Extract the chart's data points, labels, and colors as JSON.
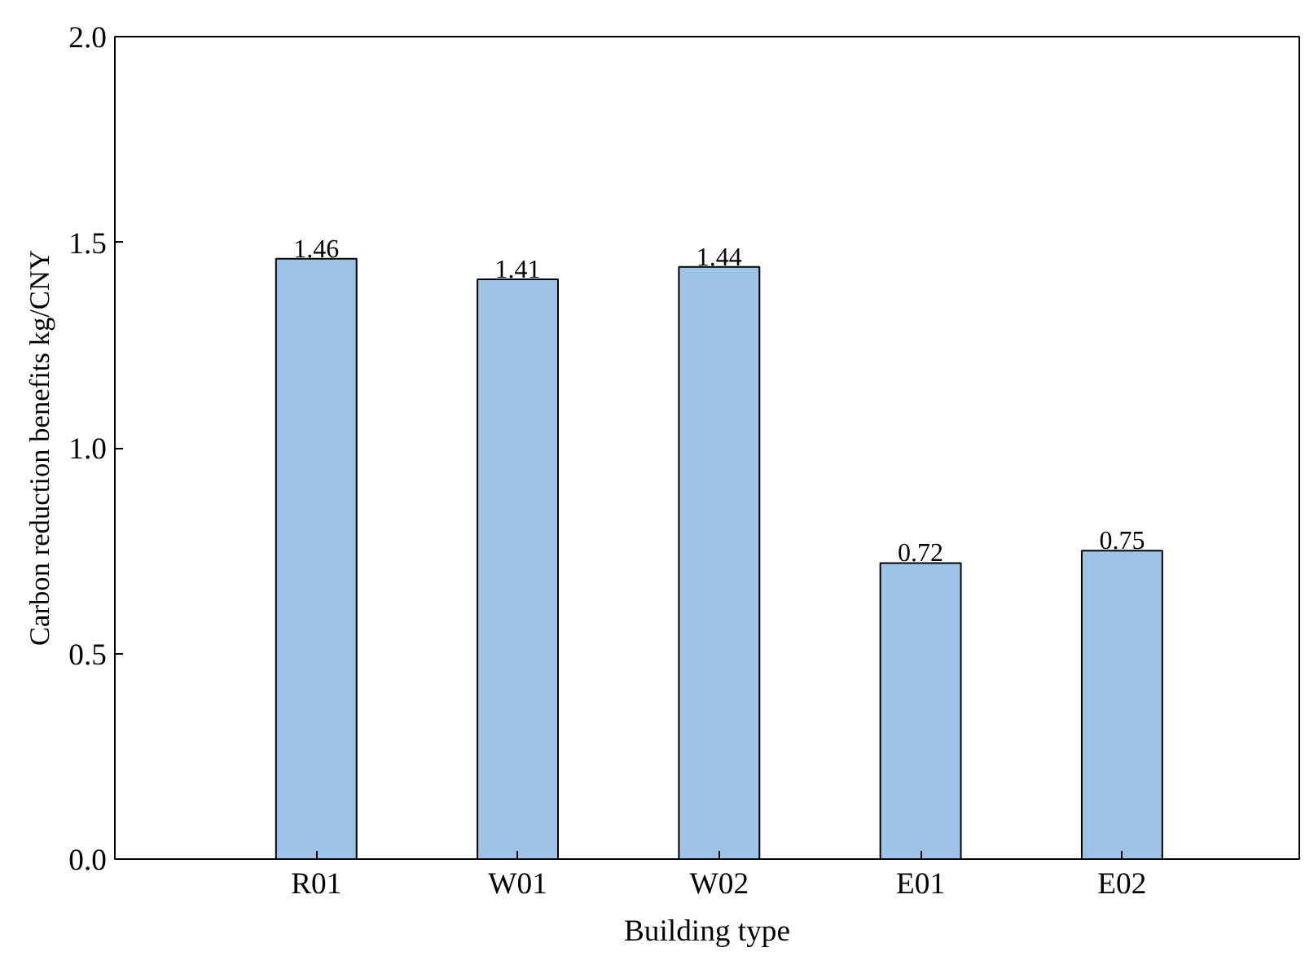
{
  "chart_data": {
    "type": "bar",
    "xlabel": "Building type",
    "ylabel": "Carbon reduction benefits kg/CNY",
    "categories": [
      "R01",
      "W01",
      "W02",
      "E01",
      "E02"
    ],
    "values": [
      1.46,
      1.41,
      1.44,
      0.72,
      0.75
    ],
    "color": "#9dc3e6",
    "ylim": [
      0,
      2
    ],
    "yticks": [
      {
        "value": 0,
        "label": "0.0"
      },
      {
        "value": 0.5,
        "label": "0.5"
      },
      {
        "value": 1,
        "label": "1.0"
      },
      {
        "value": 1.5,
        "label": "1.5"
      },
      {
        "value": 2,
        "label": "2.0"
      }
    ],
    "data_labels": true,
    "grid": false
  }
}
